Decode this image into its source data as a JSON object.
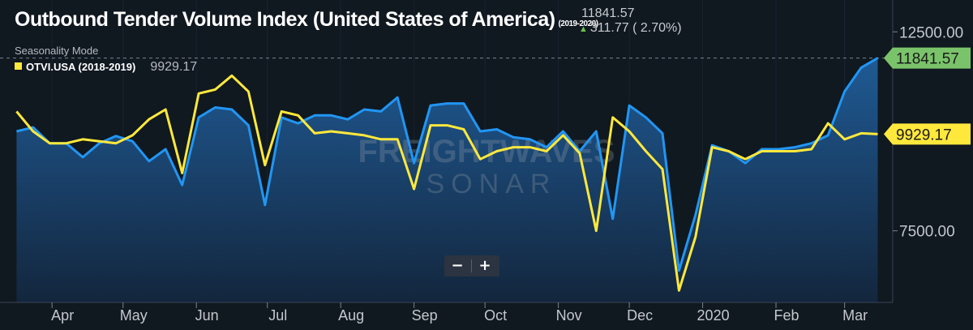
{
  "header": {
    "title": "Outbound Tender Volume Index (United States of America)",
    "title_years": "(2019-2020)",
    "current_value": "11841.57",
    "change": "311.77 ( 2.70%)",
    "seasonality": "Seasonality Mode",
    "legend_name": "OTVI.USA (2018-2019)",
    "legend_value": "9929.17"
  },
  "zoom": {
    "minus": "−",
    "plus": "+"
  },
  "watermark": {
    "line1": "FREIGHTWAVES",
    "line2": "SONAR"
  },
  "chart_data": {
    "type": "area",
    "title": "Outbound Tender Volume Index (United States of America)",
    "ylim": [
      5700,
      13300
    ],
    "y_ticks": [
      12500,
      7500
    ],
    "y_tick_labels": [
      "12500.00",
      "7500.00"
    ],
    "x_ticks": [
      "Apr",
      "May",
      "Jun",
      "Jul",
      "Aug",
      "Sep",
      "Oct",
      "Nov",
      "Dec",
      "2020",
      "Feb",
      "Mar"
    ],
    "x": [
      "2019-03-17",
      "2019-03-24",
      "2019-03-31",
      "2019-04-07",
      "2019-04-14",
      "2019-04-21",
      "2019-04-28",
      "2019-05-05",
      "2019-05-12",
      "2019-05-19",
      "2019-05-26",
      "2019-06-02",
      "2019-06-09",
      "2019-06-16",
      "2019-06-23",
      "2019-06-30",
      "2019-07-07",
      "2019-07-14",
      "2019-07-21",
      "2019-07-28",
      "2019-08-04",
      "2019-08-11",
      "2019-08-18",
      "2019-08-25",
      "2019-09-01",
      "2019-09-08",
      "2019-09-15",
      "2019-09-22",
      "2019-09-29",
      "2019-10-06",
      "2019-10-13",
      "2019-10-20",
      "2019-10-27",
      "2019-11-03",
      "2019-11-10",
      "2019-11-17",
      "2019-11-24",
      "2019-12-01",
      "2019-12-08",
      "2019-12-15",
      "2019-12-22",
      "2019-12-29",
      "2020-01-05",
      "2020-01-12",
      "2020-01-19",
      "2020-01-26",
      "2020-02-02",
      "2020-02-09",
      "2020-02-16",
      "2020-02-23",
      "2020-03-01",
      "2020-03-08",
      "2020-03-15"
    ],
    "series": [
      {
        "name": "OTVI.USA (2019-2020)",
        "color": "#2196f3",
        "values": [
          10000,
          10100,
          9700,
          9700,
          9350,
          9700,
          9880,
          9750,
          9250,
          9550,
          8650,
          10350,
          10600,
          10550,
          10150,
          8150,
          10350,
          10200,
          10400,
          10400,
          10300,
          10550,
          10500,
          10850,
          9200,
          10650,
          10700,
          10700,
          10000,
          10050,
          9850,
          9800,
          9600,
          10000,
          9500,
          10000,
          7800,
          10650,
          10350,
          9950,
          6500,
          7900,
          9650,
          9500,
          9200,
          9550,
          9550,
          9600,
          9700,
          9900,
          11000,
          11600,
          11841.57
        ]
      },
      {
        "name": "OTVI.USA (2018-2019)",
        "color": "#ffe83c",
        "values": [
          10500,
          10000,
          9700,
          9700,
          9800,
          9750,
          9700,
          9900,
          10300,
          10550,
          8950,
          10950,
          11050,
          11400,
          11000,
          9150,
          10500,
          10400,
          9950,
          10000,
          9950,
          9900,
          9800,
          9800,
          8550,
          10150,
          10150,
          10050,
          9300,
          9500,
          9600,
          9600,
          9500,
          9900,
          9450,
          7500,
          10350,
          10000,
          9500,
          9050,
          6000,
          7350,
          9600,
          9500,
          9300,
          9500,
          9500,
          9500,
          9550,
          10200,
          9800,
          9950,
          9929.17
        ]
      }
    ],
    "labels": [
      {
        "text": "11841.57",
        "color": "#7ac36a",
        "value": 11841.57
      },
      {
        "text": "9929.17",
        "color": "#ffe83c",
        "value": 9929.17
      }
    ],
    "reference_line": 11841.57
  }
}
